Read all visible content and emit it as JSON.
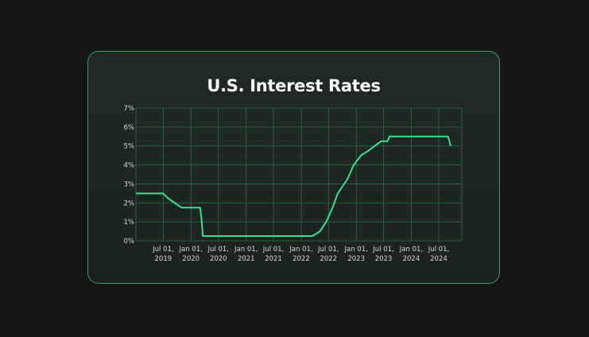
{
  "colors": {
    "background": "#161616",
    "card": "#1d2621",
    "border": "#3f9a68",
    "grid": "#2f6e4c",
    "line": "#3ee08e",
    "text": "#ffffff"
  },
  "chart_data": {
    "type": "line",
    "title": "U.S. Interest Rates",
    "xlabel": "",
    "ylabel": "",
    "ylim": [
      0,
      7
    ],
    "y_ticks": [
      "0%",
      "1%",
      "2%",
      "3%",
      "4%",
      "5%",
      "6%",
      "7%"
    ],
    "x_ticks": [
      [
        "Jul 01,",
        "2019"
      ],
      [
        "Jan 01,",
        "2020"
      ],
      [
        "Jul 01,",
        "2020"
      ],
      [
        "Jan 01,",
        "2021"
      ],
      [
        "Jul 01,",
        "2021"
      ],
      [
        "Jan 01,",
        "2022"
      ],
      [
        "Jul 01,",
        "2022"
      ],
      [
        "Jan 01,",
        "2023"
      ],
      [
        "Jul 01,",
        "2023"
      ],
      [
        "Jan 01,",
        "2024"
      ],
      [
        "Jul 01,",
        "2024"
      ]
    ],
    "grid": true,
    "legend": "none",
    "series": [
      {
        "points": [
          [
            "2019-01-01",
            2.5
          ],
          [
            "2019-07-01",
            2.5
          ],
          [
            "2019-08-01",
            2.25
          ],
          [
            "2019-09-15",
            2.0
          ],
          [
            "2019-10-31",
            1.75
          ],
          [
            "2020-01-01",
            1.75
          ],
          [
            "2020-03-01",
            1.75
          ],
          [
            "2020-03-10",
            1.25
          ],
          [
            "2020-03-20",
            0.25
          ],
          [
            "2022-03-16",
            0.25
          ],
          [
            "2022-05-05",
            0.5
          ],
          [
            "2022-06-16",
            1.0
          ],
          [
            "2022-07-28",
            1.75
          ],
          [
            "2022-08-31",
            2.5
          ],
          [
            "2022-09-22",
            2.75
          ],
          [
            "2022-11-03",
            3.25
          ],
          [
            "2022-12-15",
            4.0
          ],
          [
            "2023-02-01",
            4.5
          ],
          [
            "2023-03-22",
            4.75
          ],
          [
            "2023-05-03",
            5.0
          ],
          [
            "2023-06-15",
            5.25
          ],
          [
            "2023-07-27",
            5.25
          ],
          [
            "2023-08-10",
            5.5
          ],
          [
            "2024-09-01",
            5.5
          ],
          [
            "2024-09-18",
            5.0
          ]
        ]
      }
    ]
  }
}
